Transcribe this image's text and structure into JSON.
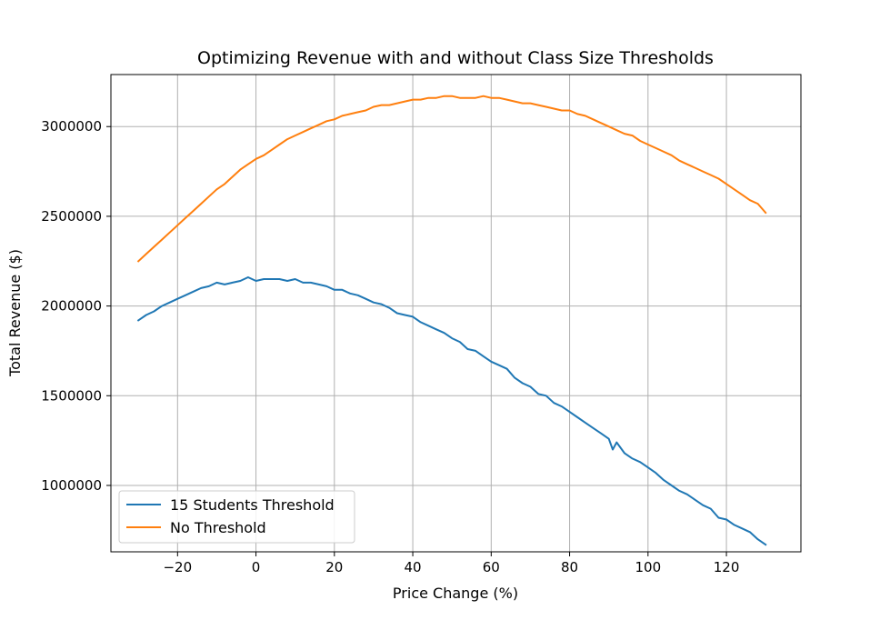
{
  "chart_data": {
    "type": "line",
    "title": "Optimizing Revenue with and without Class Size Thresholds",
    "xlabel": "Price Change (%)",
    "ylabel": "Total Revenue ($)",
    "xlim": [
      -37,
      139
    ],
    "ylim": [
      630000,
      3290000
    ],
    "xticks": [
      -20,
      0,
      20,
      40,
      60,
      80,
      100,
      120
    ],
    "xtick_labels": [
      "−20",
      "0",
      "20",
      "40",
      "60",
      "80",
      "100",
      "120"
    ],
    "yticks": [
      1000000,
      1500000,
      2000000,
      2500000,
      3000000
    ],
    "ytick_labels": [
      "1000000",
      "1500000",
      "2000000",
      "2500000",
      "3000000"
    ],
    "grid": true,
    "legend_position": "lower-left",
    "series": [
      {
        "name": "15 Students Threshold",
        "color": "#1f77b4",
        "x": [
          -30,
          -28,
          -26,
          -24,
          -22,
          -20,
          -18,
          -16,
          -14,
          -12,
          -10,
          -8,
          -6,
          -4,
          -2,
          0,
          2,
          4,
          6,
          8,
          10,
          12,
          14,
          16,
          18,
          20,
          22,
          24,
          26,
          28,
          30,
          32,
          34,
          36,
          38,
          40,
          42,
          44,
          46,
          48,
          50,
          52,
          54,
          56,
          58,
          60,
          62,
          64,
          66,
          68,
          70,
          72,
          74,
          76,
          78,
          80,
          82,
          84,
          86,
          88,
          90,
          91,
          92,
          94,
          96,
          98,
          100,
          102,
          104,
          106,
          108,
          110,
          112,
          114,
          116,
          118,
          120,
          122,
          124,
          126,
          128,
          130
        ],
        "values": [
          1920000,
          1950000,
          1970000,
          2000000,
          2020000,
          2040000,
          2060000,
          2080000,
          2100000,
          2110000,
          2130000,
          2120000,
          2130000,
          2140000,
          2160000,
          2140000,
          2150000,
          2150000,
          2150000,
          2140000,
          2150000,
          2130000,
          2130000,
          2120000,
          2110000,
          2090000,
          2090000,
          2070000,
          2060000,
          2040000,
          2020000,
          2010000,
          1990000,
          1960000,
          1950000,
          1940000,
          1910000,
          1890000,
          1870000,
          1850000,
          1820000,
          1800000,
          1760000,
          1750000,
          1720000,
          1690000,
          1670000,
          1650000,
          1600000,
          1570000,
          1550000,
          1510000,
          1500000,
          1460000,
          1440000,
          1410000,
          1380000,
          1350000,
          1320000,
          1290000,
          1260000,
          1200000,
          1240000,
          1180000,
          1150000,
          1130000,
          1100000,
          1070000,
          1030000,
          1000000,
          970000,
          950000,
          920000,
          890000,
          870000,
          820000,
          810000,
          780000,
          760000,
          740000,
          700000,
          670000
        ]
      },
      {
        "name": "No Threshold",
        "color": "#ff7f0e",
        "x": [
          -30,
          -28,
          -26,
          -24,
          -22,
          -20,
          -18,
          -16,
          -14,
          -12,
          -10,
          -8,
          -6,
          -4,
          -2,
          0,
          2,
          4,
          6,
          8,
          10,
          12,
          14,
          16,
          18,
          20,
          22,
          24,
          26,
          28,
          30,
          32,
          34,
          36,
          38,
          40,
          42,
          44,
          46,
          48,
          50,
          52,
          54,
          56,
          58,
          60,
          62,
          64,
          66,
          68,
          70,
          72,
          74,
          76,
          78,
          80,
          82,
          84,
          86,
          88,
          90,
          92,
          94,
          96,
          98,
          100,
          102,
          104,
          106,
          108,
          110,
          112,
          114,
          116,
          118,
          120,
          122,
          124,
          126,
          128,
          130
        ],
        "values": [
          2250000,
          2290000,
          2330000,
          2370000,
          2410000,
          2450000,
          2490000,
          2530000,
          2570000,
          2610000,
          2650000,
          2680000,
          2720000,
          2760000,
          2790000,
          2820000,
          2840000,
          2870000,
          2900000,
          2930000,
          2950000,
          2970000,
          2990000,
          3010000,
          3030000,
          3040000,
          3060000,
          3070000,
          3080000,
          3090000,
          3110000,
          3120000,
          3120000,
          3130000,
          3140000,
          3150000,
          3150000,
          3160000,
          3160000,
          3170000,
          3170000,
          3160000,
          3160000,
          3160000,
          3170000,
          3160000,
          3160000,
          3150000,
          3140000,
          3130000,
          3130000,
          3120000,
          3110000,
          3100000,
          3090000,
          3090000,
          3070000,
          3060000,
          3040000,
          3020000,
          3000000,
          2980000,
          2960000,
          2950000,
          2920000,
          2900000,
          2880000,
          2860000,
          2840000,
          2810000,
          2790000,
          2770000,
          2750000,
          2730000,
          2710000,
          2680000,
          2650000,
          2620000,
          2590000,
          2570000,
          2520000
        ]
      }
    ]
  }
}
